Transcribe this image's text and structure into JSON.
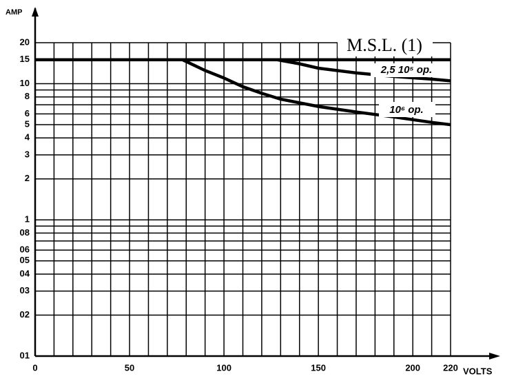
{
  "chart_data": {
    "type": "line",
    "ylabel": "AMP",
    "xlabel": "VOLTS",
    "log_y": true,
    "grid": true,
    "color": "#000000",
    "xlim": [
      0,
      220
    ],
    "ylim": [
      0.1,
      20
    ],
    "xticks": [
      0,
      50,
      100,
      150,
      200,
      220
    ],
    "xminor": [
      10,
      20,
      30,
      40,
      60,
      70,
      80,
      90,
      110,
      120,
      130,
      140,
      160,
      170,
      180,
      190,
      210
    ],
    "yticks": [
      20,
      15,
      10,
      8,
      6,
      5,
      4,
      3,
      2,
      1,
      {
        "value": 0.8,
        "label": "08"
      },
      {
        "value": 0.6,
        "label": "06"
      },
      {
        "value": 0.5,
        "label": "05"
      },
      {
        "value": 0.4,
        "label": "04"
      },
      {
        "value": 0.3,
        "label": "03"
      },
      {
        "value": 0.2,
        "label": "02"
      },
      {
        "value": 0.1,
        "label": "01"
      }
    ],
    "yminor": [
      9,
      7,
      0.9,
      0.7
    ],
    "series": [
      {
        "name": "M.S.L. (1)",
        "color": "#000000",
        "x": [
          0,
          220
        ],
        "values": [
          15,
          15
        ]
      },
      {
        "name": "2,5 10⁵ op.",
        "color": "#000000",
        "x": [
          128,
          140,
          150,
          170,
          190,
          210,
          220
        ],
        "values": [
          15,
          14,
          13,
          12,
          11.3,
          10.8,
          10.5
        ]
      },
      {
        "name": "10⁶ op.",
        "color": "#000000",
        "x": [
          78,
          90,
          100,
          110,
          120,
          130,
          150,
          170,
          190,
          210,
          220
        ],
        "values": [
          15,
          12.5,
          11,
          9.5,
          8.5,
          7.7,
          6.8,
          6.2,
          5.7,
          5.2,
          5
        ]
      }
    ]
  }
}
